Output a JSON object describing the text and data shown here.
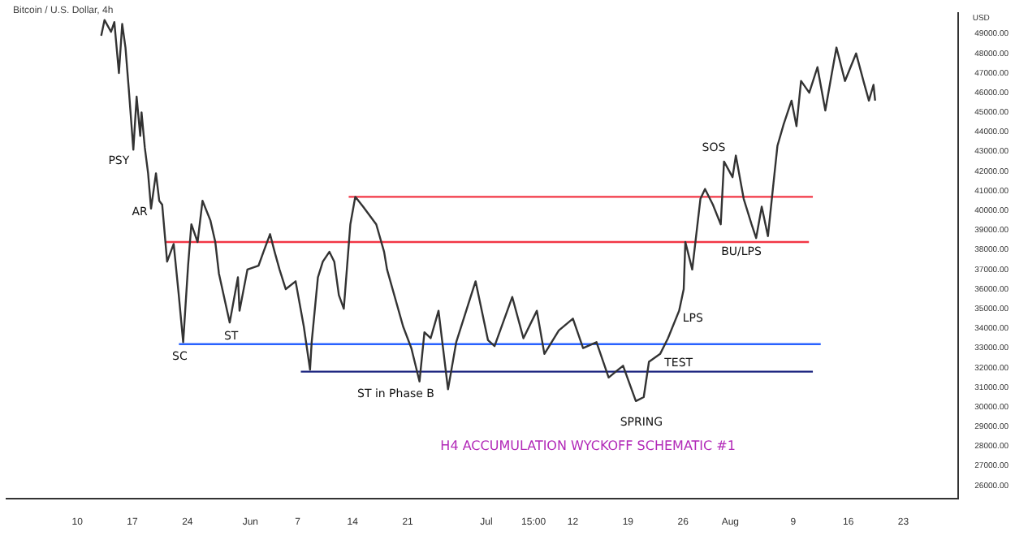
{
  "chart_data": {
    "type": "line",
    "title": "H4 ACCUMULATION WYCKOFF SCHEMATIC #1",
    "subtitle": "Bitcoin / U.S. Dollar, 4h",
    "ylabel": "USD",
    "xlim": [
      "--05-01",
      "--08-30"
    ],
    "ylim": [
      25350,
      50060
    ],
    "xticks": [
      {
        "value": "--05-10",
        "label": "10"
      },
      {
        "value": "--05-17",
        "label": "17"
      },
      {
        "value": "--05-24",
        "label": "24"
      },
      {
        "value": "--06-01",
        "label": "Jun"
      },
      {
        "value": "--06-07",
        "label": "7"
      },
      {
        "value": "--06-14",
        "label": "14"
      },
      {
        "value": "--06-21",
        "label": "21"
      },
      {
        "value": "--07-01",
        "label": "Jul"
      },
      {
        "value": "--07-07",
        "label": "15:00"
      },
      {
        "value": "--07-12",
        "label": "12"
      },
      {
        "value": "--07-19",
        "label": "19"
      },
      {
        "value": "--07-26",
        "label": "26"
      },
      {
        "value": "--08-01",
        "label": "Aug"
      },
      {
        "value": "--08-09",
        "label": "9"
      },
      {
        "value": "--08-16",
        "label": "16"
      },
      {
        "value": "--08-23",
        "label": "23"
      }
    ],
    "yticks": [
      {
        "value": 26000,
        "label": "26000.00"
      },
      {
        "value": 27000,
        "label": "27000.00"
      },
      {
        "value": 28000,
        "label": "28000.00"
      },
      {
        "value": 29000,
        "label": "29000.00"
      },
      {
        "value": 30000,
        "label": "30000.00"
      },
      {
        "value": 31000,
        "label": "31000.00"
      },
      {
        "value": 32000,
        "label": "32000.00"
      },
      {
        "value": 33000,
        "label": "33000.00"
      },
      {
        "value": 34000,
        "label": "34000.00"
      },
      {
        "value": 35000,
        "label": "35000.00"
      },
      {
        "value": 36000,
        "label": "36000.00"
      },
      {
        "value": 37000,
        "label": "37000.00"
      },
      {
        "value": 38000,
        "label": "38000.00"
      },
      {
        "value": 39000,
        "label": "39000.00"
      },
      {
        "value": 40000,
        "label": "40000.00"
      },
      {
        "value": 41000,
        "label": "41000.00"
      },
      {
        "value": 42000,
        "label": "42000.00"
      },
      {
        "value": 43000,
        "label": "43000.00"
      },
      {
        "value": 44000,
        "label": "44000.00"
      },
      {
        "value": 45000,
        "label": "45000.00"
      },
      {
        "value": 46000,
        "label": "46000.00"
      },
      {
        "value": 47000,
        "label": "47000.00"
      },
      {
        "value": 48000,
        "label": "48000.00"
      },
      {
        "value": 49000,
        "label": "49000.00"
      }
    ],
    "grid": false,
    "legend": false,
    "series": [
      {
        "color": "#333333",
        "x": [
          "--05-13T01:00",
          "--05-13T11:00",
          "--05-14T07:00",
          "--05-14T17:00",
          "--05-15T07:00",
          "--05-15T17:00",
          "--05-16T03:00",
          "--05-16T13:00",
          "--05-17T03:00",
          "--05-17T13:00",
          "--05-18T00:00",
          "--05-18T04:00",
          "--05-18T14:00",
          "--05-19T00:00",
          "--05-19T09:00",
          "--05-20T00:00",
          "--05-20T10:00",
          "--05-20T19:00",
          "--05-21T10:00",
          "--05-22T06:00",
          "--05-22T21:00",
          "--05-23T11:00",
          "--05-24T02:00",
          "--05-24T12:00",
          "--05-25T07:00",
          "--05-25T22:00",
          "--05-26T22:00",
          "--05-27T13:00",
          "--05-28T00:00",
          "--05-29T09:00",
          "--05-30T10:00",
          "--05-30T15:00",
          "--05-31T15:00",
          "--06-02T01:00",
          "--06-02T16:00",
          "--06-03T12:00",
          "--06-04T02:00",
          "--06-04T17:00",
          "--06-05T12:00",
          "--06-06T18:00",
          "--06-07T19:00",
          "--06-08T14:00",
          "--06-08T19:00",
          "--06-09T14:00",
          "--06-10T05:00",
          "--06-11T01:00",
          "--06-11T16:00",
          "--06-12T06:00",
          "--06-12T21:00",
          "--06-13T17:00",
          "--06-14T08:00",
          "--06-15T08:00",
          "--06-17T00:00",
          "--06-18T00:00",
          "--06-18T09:00",
          "--06-20T10:00",
          "--06-21T11:00",
          "--06-22T12:00",
          "--06-23T03:00",
          "--06-23T22:00",
          "--06-24T22:00",
          "--06-26T03:00",
          "--06-27T04:00",
          "--06-29T15:00",
          "--07-01T05:00",
          "--07-02T01:00",
          "--07-04T07:00",
          "--07-05T17:00",
          "--07-07T10:00",
          "--07-08T09:00",
          "--07-10T05:00",
          "--07-12T00:00",
          "--07-13T07:00",
          "--07-15T00:00",
          "--07-16T13:00",
          "--07-18T09:00",
          "--07-20T00:00",
          "--07-21T00:00",
          "--07-21T16:00",
          "--07-23T02:00",
          "--07-24T02:00",
          "--07-25T12:00",
          "--07-26T02:00",
          "--07-26T07:00",
          "--07-27T04:00",
          "--07-28T05:00",
          "--07-28T19:00",
          "--07-29T19:00",
          "--07-30T19:00",
          "--07-31T05:00",
          "--08-01T07:00",
          "--08-01T17:00",
          "--08-02T17:00",
          "--08-03T17:00",
          "--08-04T07:00",
          "--08-05T00:00",
          "--08-05T19:00",
          "--08-06T10:00",
          "--08-07T00:00",
          "--08-07T19:00",
          "--08-08T19:00",
          "--08-09T10:00",
          "--08-10T00:00",
          "--08-11T01:00",
          "--08-12T02:00",
          "--08-13T02:00",
          "--08-13T22:00",
          "--08-14T12:00",
          "--08-15T14:00",
          "--08-17T00:00",
          "--08-18T00:00",
          "--08-18T15:00",
          "--08-19T05:00",
          "--08-19T10:00"
        ],
        "values": [
          48900,
          49700,
          49100,
          49600,
          47000,
          49500,
          48300,
          46200,
          43100,
          45800,
          43800,
          45000,
          43200,
          41900,
          40100,
          41900,
          40500,
          40300,
          37400,
          38300,
          35800,
          33300,
          37200,
          39300,
          38400,
          40500,
          39500,
          38400,
          36800,
          34300,
          36600,
          34900,
          37000,
          37200,
          37900,
          38800,
          37900,
          37000,
          36000,
          36400,
          34100,
          31900,
          33300,
          36600,
          37400,
          37900,
          37400,
          35700,
          35000,
          39300,
          40700,
          40200,
          39300,
          37900,
          37000,
          34100,
          33000,
          31300,
          33800,
          33500,
          34900,
          30900,
          33300,
          36400,
          33400,
          33100,
          35600,
          33500,
          34900,
          32700,
          33900,
          34500,
          33000,
          33300,
          31500,
          32100,
          30300,
          30500,
          32300,
          32700,
          33500,
          34900,
          36000,
          38400,
          37000,
          40600,
          41100,
          40300,
          39300,
          42500,
          41700,
          42800,
          40600,
          39300,
          38600,
          40200,
          38700,
          41100,
          43300,
          44400,
          45600,
          44300,
          46600,
          46000,
          47300,
          45100,
          47000,
          48300,
          46600,
          48000,
          46500,
          45600,
          46400,
          45600
        ]
      },
      {
        "color": "#f23645",
        "x": [
          "--06-13T12:00",
          "--08-11T12:00"
        ],
        "values": [
          40700,
          40700
        ]
      },
      {
        "color": "#f23645",
        "x": [
          "--05-21T06:00",
          "--08-11T00:00"
        ],
        "values": [
          38400,
          38400
        ]
      },
      {
        "color": "#2962ff",
        "x": [
          "--05-22T22:00",
          "--08-12T12:00"
        ],
        "values": [
          33200,
          33200
        ]
      },
      {
        "color": "#1a237e",
        "x": [
          "--06-07T10:00",
          "--08-11T12:00"
        ],
        "values": [
          31800,
          31800
        ]
      }
    ],
    "annotations": [
      "PSY",
      "AR",
      "SC",
      "ST",
      "ST in Phase B",
      "SOS",
      "BU/LPS",
      "LPS",
      "TEST",
      "SPRING"
    ]
  }
}
